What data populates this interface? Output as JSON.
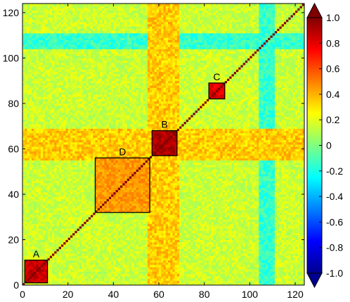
{
  "chart_data": {
    "type": "heatmap",
    "title": "",
    "xlabel": "",
    "ylabel": "",
    "n": 124,
    "xlim": [
      0,
      124
    ],
    "ylim": [
      0,
      124
    ],
    "x_ticks": [
      "0",
      "20",
      "40",
      "60",
      "80",
      "100",
      "120"
    ],
    "x_tick_values": [
      0,
      20,
      40,
      60,
      80,
      100,
      120
    ],
    "y_ticks": [
      "0",
      "20",
      "40",
      "60",
      "80",
      "100",
      "120"
    ],
    "y_tick_values": [
      0,
      20,
      40,
      60,
      80,
      100,
      120
    ],
    "colorbar": {
      "min": -1.0,
      "max": 1.0,
      "colormap": "jet",
      "tick_labels": [
        "1.0",
        "0.8",
        "0.6",
        "0.4",
        "0.2",
        "0",
        "-0.2",
        "-0.4",
        "-0.6",
        "-0.8",
        "-1.0"
      ],
      "tick_values": [
        1.0,
        0.8,
        0.6,
        0.4,
        0.2,
        0,
        -0.2,
        -0.4,
        -0.6,
        -0.8,
        -1.0
      ]
    },
    "background_correlation": 0.15,
    "diagonal_value": 1.0,
    "bands": [
      {
        "range": [
          104,
          110
        ],
        "value": -0.15,
        "note": "negatively correlated band"
      },
      {
        "range": [
          55,
          68
        ],
        "value": 0.35,
        "note": "weakly correlated band"
      }
    ],
    "modules": [
      {
        "label": "A",
        "range": [
          1,
          10
        ],
        "mean": 0.85
      },
      {
        "label": "B",
        "range": [
          57,
          67
        ],
        "mean": 0.9
      },
      {
        "label": "C",
        "range": [
          82,
          88
        ],
        "mean": 0.8
      },
      {
        "label": "D",
        "range": [
          32,
          55
        ],
        "mean": 0.45
      }
    ]
  }
}
